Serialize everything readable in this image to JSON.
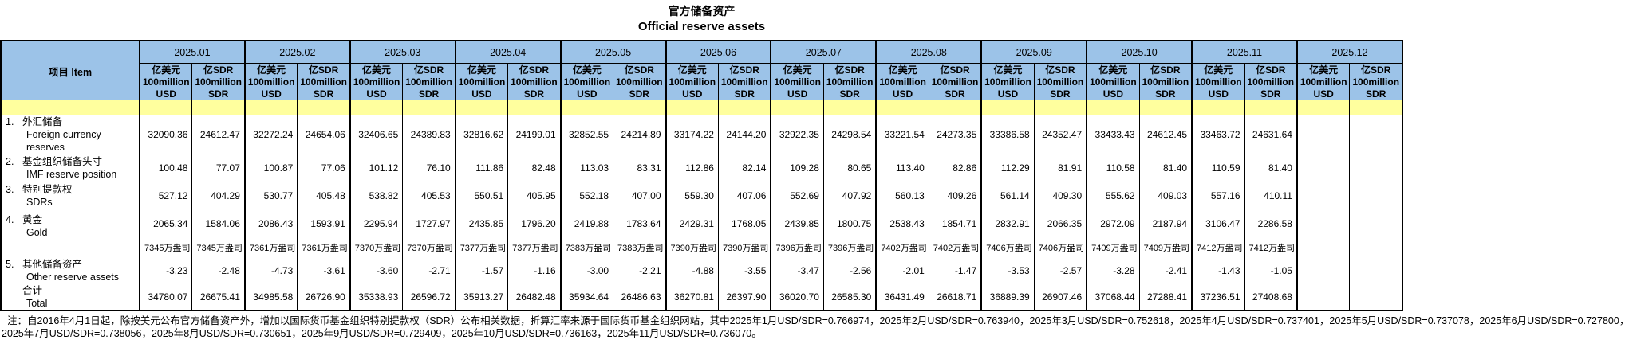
{
  "title_cn": "官方储备资产",
  "title_en": "Official reserve assets",
  "table": {
    "item_header": "项目  Item",
    "months": [
      "2025.01",
      "2025.02",
      "2025.03",
      "2025.04",
      "2025.05",
      "2025.06",
      "2025.07",
      "2025.08",
      "2025.09",
      "2025.10",
      "2025.11",
      "2025.12"
    ],
    "unit_usd": "亿美元\n100million\nUSD",
    "unit_sdr": "亿SDR\n100million\nSDR",
    "rows": [
      {
        "no": "1.",
        "label_cn": "外汇储备",
        "label_en": "Foreign currency reserves",
        "values": [
          "32090.36",
          "24612.47",
          "32272.24",
          "24654.06",
          "32406.65",
          "24389.83",
          "32816.62",
          "24199.01",
          "32852.55",
          "24214.89",
          "33174.22",
          "24144.20",
          "32922.35",
          "24298.54",
          "33221.54",
          "24273.35",
          "33386.58",
          "24352.47",
          "33433.43",
          "24612.45",
          "33463.72",
          "24631.64",
          "",
          ""
        ]
      },
      {
        "no": "2.",
        "label_cn": "基金组织储备头寸",
        "label_en": "IMF reserve position",
        "values": [
          "100.48",
          "77.07",
          "100.87",
          "77.06",
          "101.12",
          "76.10",
          "111.86",
          "82.48",
          "113.03",
          "83.31",
          "112.86",
          "82.14",
          "109.28",
          "80.65",
          "113.40",
          "82.86",
          "112.29",
          "81.91",
          "110.58",
          "81.40",
          "110.59",
          "81.40",
          "",
          ""
        ]
      },
      {
        "no": "3.",
        "label_cn": "特别提款权",
        "label_en": "SDRs",
        "values": [
          "527.12",
          "404.29",
          "530.77",
          "405.48",
          "538.82",
          "405.53",
          "550.51",
          "405.95",
          "552.18",
          "407.00",
          "559.30",
          "407.06",
          "552.69",
          "407.92",
          "560.13",
          "409.26",
          "561.14",
          "409.30",
          "555.62",
          "409.03",
          "557.16",
          "410.11",
          "",
          ""
        ]
      },
      {
        "no": "4.",
        "label_cn": "黄金",
        "label_en": "Gold",
        "values": [
          "2065.34",
          "1584.06",
          "2086.43",
          "1593.91",
          "2295.94",
          "1727.97",
          "2435.85",
          "1796.20",
          "2419.88",
          "1783.64",
          "2429.31",
          "1768.05",
          "2439.85",
          "1800.75",
          "2538.43",
          "1854.71",
          "2832.91",
          "2066.35",
          "2972.09",
          "2187.94",
          "3106.47",
          "2286.58",
          "",
          ""
        ],
        "sub_values": [
          "7345万盎司",
          "7345万盎司",
          "7361万盎司",
          "7361万盎司",
          "7370万盎司",
          "7370万盎司",
          "7377万盎司",
          "7377万盎司",
          "7383万盎司",
          "7383万盎司",
          "7390万盎司",
          "7390万盎司",
          "7396万盎司",
          "7396万盎司",
          "7402万盎司",
          "7402万盎司",
          "7406万盎司",
          "7406万盎司",
          "7409万盎司",
          "7409万盎司",
          "7412万盎司",
          "7412万盎司",
          "",
          ""
        ]
      },
      {
        "no": "5.",
        "label_cn": "其他储备资产",
        "label_en": "Other reserve assets",
        "values": [
          "-3.23",
          "-2.48",
          "-4.73",
          "-3.61",
          "-3.60",
          "-2.71",
          "-1.57",
          "-1.16",
          "-3.00",
          "-2.21",
          "-4.88",
          "-3.55",
          "-3.47",
          "-2.56",
          "-2.01",
          "-1.47",
          "-3.53",
          "-2.57",
          "-3.28",
          "-2.41",
          "-1.43",
          "-1.05",
          "",
          ""
        ]
      },
      {
        "no": "",
        "label_cn": "合计",
        "label_en": "Total",
        "is_total": true,
        "values": [
          "34780.07",
          "26675.41",
          "34985.58",
          "26726.90",
          "35338.93",
          "26596.72",
          "35913.27",
          "26482.48",
          "35934.64",
          "26486.63",
          "36270.81",
          "26397.90",
          "36020.70",
          "26585.30",
          "36431.49",
          "26618.71",
          "36889.39",
          "26907.46",
          "37068.44",
          "27288.41",
          "37236.51",
          "27408.68",
          "",
          ""
        ]
      }
    ]
  },
  "colors": {
    "header_blue": "#9CC3E8",
    "band_yellow": "#FFFF9E",
    "border_black": "#000000"
  },
  "note_line1": "注：自2016年4月1日起，除按美元公布官方储备资产外，增加以国际货币基金组织特别提款权（SDR）公布相关数据，折算汇率来源于国际货币基金组织网站，其中2025年1月USD/SDR=0.766974，2025年2月USD/SDR=0.763940，2025年3月USD/SDR=0.752618，2025年4月USD/SDR=0.737401，2025年5月USD/SDR=0.737078，2025年6月USD/SDR=0.727800，",
  "note_line2": "2025年7月USD/SDR=0.738056，2025年8月USD/SDR=0.730651，2025年9月USD/SDR=0.729409，2025年10月USD/SDR=0.736163，2025年11月USD/SDR=0.736070。"
}
